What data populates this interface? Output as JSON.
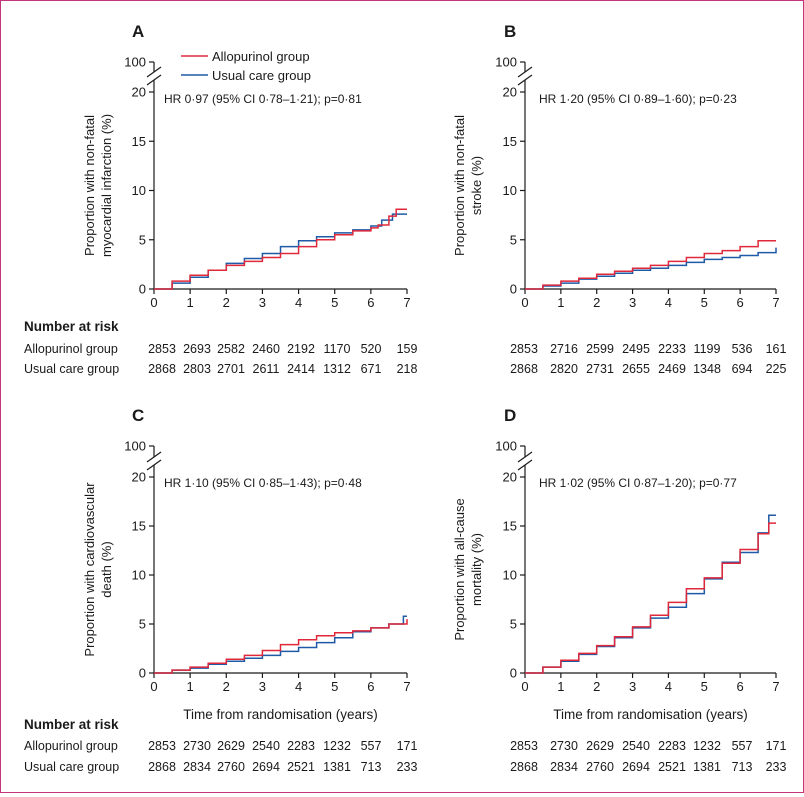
{
  "colors": {
    "allopurinol": "#e0283a",
    "usual_care": "#1f5aa6",
    "axis": "#1a1a1a",
    "border": "#c4367c"
  },
  "legend": {
    "allopurinol": "Allopurinol group",
    "usual_care": "Usual care group"
  },
  "risk_table": {
    "header": "Number at risk",
    "row1": "Allopurinol group",
    "row2": "Usual care group"
  },
  "x_axis_title": "Time from randomisation (years)",
  "chart_data": [
    {
      "type": "line",
      "panel": "A",
      "ylabel": [
        "Proportion with non-fatal",
        "myocardial infarction (%)"
      ],
      "annotation": "HR 0·97 (95% CI 0·78–1·21); p=0·81",
      "xlim": [
        0,
        7
      ],
      "ylim": [
        0,
        20
      ],
      "y_break_top": 100,
      "x_ticks": [
        0,
        1,
        2,
        3,
        4,
        5,
        6,
        7
      ],
      "y_ticks": [
        0,
        5,
        10,
        15,
        20
      ],
      "series": [
        {
          "name": "Allopurinol group",
          "x": [
            0,
            0.5,
            1,
            1.5,
            2,
            2.5,
            3,
            3.5,
            4,
            4.5,
            5,
            5.5,
            6,
            6.2,
            6.5,
            6.7,
            7
          ],
          "y": [
            0,
            0.8,
            1.4,
            1.9,
            2.4,
            2.8,
            3.2,
            3.6,
            4.3,
            5.0,
            5.5,
            5.9,
            6.2,
            6.5,
            7.4,
            8.1,
            8.1
          ]
        },
        {
          "name": "Usual care group",
          "x": [
            0,
            0.5,
            1,
            1.5,
            2,
            2.5,
            3,
            3.5,
            4,
            4.5,
            5,
            5.5,
            6,
            6.3,
            6.6,
            7
          ],
          "y": [
            0,
            0.6,
            1.2,
            1.9,
            2.6,
            3.1,
            3.6,
            4.3,
            4.9,
            5.3,
            5.7,
            6.0,
            6.4,
            7.0,
            7.6,
            7.6
          ]
        }
      ],
      "risk": {
        "allopurinol": [
          "2853",
          "2693",
          "2582",
          "2460",
          "2192",
          "1170",
          "520",
          "159"
        ],
        "usual_care": [
          "2868",
          "2803",
          "2701",
          "2611",
          "2414",
          "1312",
          "671",
          "218"
        ]
      }
    },
    {
      "type": "line",
      "panel": "B",
      "ylabel": [
        "Proportion with non-fatal",
        "stroke (%)"
      ],
      "annotation": "HR 1·20 (95% CI 0·89–1·60); p=0·23",
      "xlim": [
        0,
        7
      ],
      "ylim": [
        0,
        20
      ],
      "y_break_top": 100,
      "x_ticks": [
        0,
        1,
        2,
        3,
        4,
        5,
        6,
        7
      ],
      "y_ticks": [
        0,
        5,
        10,
        15,
        20
      ],
      "series": [
        {
          "name": "Allopurinol group",
          "x": [
            0,
            0.5,
            1,
            1.5,
            2,
            2.5,
            3,
            3.5,
            4,
            4.5,
            5,
            5.5,
            6,
            6.5,
            7
          ],
          "y": [
            0,
            0.4,
            0.8,
            1.1,
            1.5,
            1.8,
            2.1,
            2.4,
            2.8,
            3.2,
            3.6,
            3.9,
            4.3,
            4.9,
            4.9
          ]
        },
        {
          "name": "Usual care group",
          "x": [
            0,
            0.5,
            1,
            1.5,
            2,
            2.5,
            3,
            3.5,
            4,
            4.5,
            5,
            5.5,
            6,
            6.5,
            7
          ],
          "y": [
            0,
            0.3,
            0.6,
            1.0,
            1.3,
            1.6,
            1.9,
            2.1,
            2.4,
            2.7,
            3.0,
            3.2,
            3.4,
            3.7,
            4.2
          ]
        }
      ],
      "risk": {
        "allopurinol": [
          "2853",
          "2716",
          "2599",
          "2495",
          "2233",
          "1199",
          "536",
          "161"
        ],
        "usual_care": [
          "2868",
          "2820",
          "2731",
          "2655",
          "2469",
          "1348",
          "694",
          "225"
        ]
      }
    },
    {
      "type": "line",
      "panel": "C",
      "ylabel": [
        "Proportion with cardiovascular",
        "death (%)"
      ],
      "annotation": "HR 1·10 (95% CI 0·85–1·43); p=0·48",
      "xlim": [
        0,
        7
      ],
      "ylim": [
        0,
        20
      ],
      "y_break_top": 100,
      "x_ticks": [
        0,
        1,
        2,
        3,
        4,
        5,
        6,
        7
      ],
      "y_ticks": [
        0,
        5,
        10,
        15,
        20
      ],
      "series": [
        {
          "name": "Allopurinol group",
          "x": [
            0,
            0.5,
            1,
            1.5,
            2,
            2.5,
            3,
            3.5,
            4,
            4.5,
            5,
            5.5,
            6,
            6.5,
            7
          ],
          "y": [
            0,
            0.3,
            0.6,
            1.0,
            1.4,
            1.8,
            2.3,
            2.9,
            3.4,
            3.8,
            4.1,
            4.3,
            4.6,
            5.0,
            5.5
          ]
        },
        {
          "name": "Usual care group",
          "x": [
            0,
            0.5,
            1,
            1.5,
            2,
            2.5,
            3,
            3.5,
            4,
            4.5,
            5,
            5.5,
            6,
            6.5,
            6.9,
            7
          ],
          "y": [
            0,
            0.3,
            0.5,
            0.9,
            1.2,
            1.5,
            1.8,
            2.2,
            2.6,
            3.1,
            3.6,
            4.2,
            4.6,
            5.0,
            5.8,
            5.8
          ]
        }
      ],
      "risk": {
        "allopurinol": [
          "2853",
          "2730",
          "2629",
          "2540",
          "2283",
          "1232",
          "557",
          "171"
        ],
        "usual_care": [
          "2868",
          "2834",
          "2760",
          "2694",
          "2521",
          "1381",
          "713",
          "233"
        ]
      }
    },
    {
      "type": "line",
      "panel": "D",
      "ylabel": [
        "Proportion with all-cause",
        "mortality (%)"
      ],
      "annotation": "HR 1·02 (95% CI 0·87–1·20); p=0·77",
      "xlim": [
        0,
        7
      ],
      "ylim": [
        0,
        20
      ],
      "y_break_top": 100,
      "x_ticks": [
        0,
        1,
        2,
        3,
        4,
        5,
        6,
        7
      ],
      "y_ticks": [
        0,
        5,
        10,
        15,
        20
      ],
      "series": [
        {
          "name": "Allopurinol group",
          "x": [
            0,
            0.5,
            1,
            1.5,
            2,
            2.5,
            3,
            3.5,
            4,
            4.5,
            5,
            5.5,
            6,
            6.5,
            6.8,
            7
          ],
          "y": [
            0,
            0.6,
            1.3,
            2.0,
            2.8,
            3.7,
            4.7,
            5.9,
            7.2,
            8.6,
            9.7,
            11.2,
            12.6,
            14.2,
            15.3,
            15.3
          ]
        },
        {
          "name": "Usual care group",
          "x": [
            0,
            0.5,
            1,
            1.5,
            2,
            2.5,
            3,
            3.5,
            4,
            4.5,
            5,
            5.5,
            6,
            6.5,
            6.8,
            7
          ],
          "y": [
            0,
            0.6,
            1.2,
            1.9,
            2.7,
            3.6,
            4.6,
            5.6,
            6.7,
            8.1,
            9.6,
            11.3,
            12.3,
            14.3,
            16.1,
            16.1
          ]
        }
      ],
      "risk": {
        "allopurinol": [
          "2853",
          "2730",
          "2629",
          "2540",
          "2283",
          "1232",
          "557",
          "171"
        ],
        "usual_care": [
          "2868",
          "2834",
          "2760",
          "2694",
          "2521",
          "1381",
          "713",
          "233"
        ]
      }
    }
  ]
}
